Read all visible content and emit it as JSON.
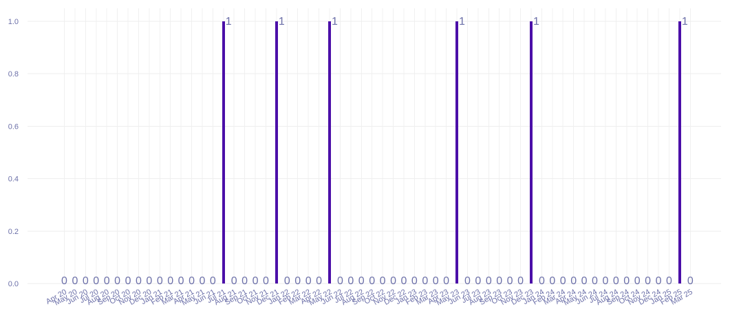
{
  "chart_data": {
    "type": "bar",
    "title": "",
    "xlabel": "",
    "ylabel": "",
    "ylim": [
      0,
      1.05
    ],
    "y_ticks": [
      "0.0",
      "0.2",
      "0.4",
      "0.6",
      "0.8",
      "1.0"
    ],
    "grid": true,
    "legend": "none",
    "bar_color": "#4b0fa8",
    "categories": [
      "Apr 20",
      "May 20",
      "Jun 20",
      "Jul 20",
      "Aug 20",
      "Sep 20",
      "Oct 20",
      "Nov 20",
      "Dec 20",
      "Jan 21",
      "Feb 21",
      "Mar 21",
      "Apr 21",
      "May 21",
      "Jun 21",
      "Jul 21",
      "Aug 21",
      "Sep 21",
      "Oct 21",
      "Nov 21",
      "Dec 21",
      "Jan 22",
      "Feb 22",
      "Mar 22",
      "Apr 22",
      "May 22",
      "Jun 22",
      "Jul 22",
      "Aug 22",
      "Sep 22",
      "Oct 22",
      "Nov 22",
      "Dec 22",
      "Jan 23",
      "Feb 23",
      "Mar 23",
      "Apr 23",
      "May 23",
      "Jun 23",
      "Jul 23",
      "Aug 23",
      "Sep 23",
      "Oct 23",
      "Nov 23",
      "Dec 23",
      "Jan 24",
      "Feb 24",
      "Mar 24",
      "Apr 24",
      "May 24",
      "Jun 24",
      "Jul 24",
      "Aug 24",
      "Sep 24",
      "Oct 24",
      "Nov 24",
      "Dec 24",
      "Jan 25",
      "Feb 25",
      "Mar 25"
    ],
    "values": [
      0,
      0,
      0,
      0,
      0,
      0,
      0,
      0,
      0,
      0,
      0,
      0,
      0,
      0,
      0,
      1,
      0,
      0,
      0,
      0,
      1,
      0,
      0,
      0,
      0,
      1,
      0,
      0,
      0,
      0,
      0,
      0,
      0,
      0,
      0,
      0,
      0,
      1,
      0,
      0,
      0,
      0,
      0,
      0,
      1,
      0,
      0,
      0,
      0,
      0,
      0,
      0,
      0,
      0,
      0,
      0,
      0,
      0,
      1,
      0
    ],
    "data_labels": [
      "0",
      "0",
      "0",
      "0",
      "0",
      "0",
      "0",
      "0",
      "0",
      "0",
      "0",
      "0",
      "0",
      "0",
      "0",
      "1",
      "0",
      "0",
      "0",
      "0",
      "1",
      "0",
      "0",
      "0",
      "0",
      "1",
      "0",
      "0",
      "0",
      "0",
      "0",
      "0",
      "0",
      "0",
      "0",
      "0",
      "0",
      "1",
      "0",
      "0",
      "0",
      "0",
      "0",
      "0",
      "1",
      "0",
      "0",
      "0",
      "0",
      "0",
      "0",
      "0",
      "0",
      "0",
      "0",
      "0",
      "0",
      "0",
      "1",
      "0"
    ]
  }
}
